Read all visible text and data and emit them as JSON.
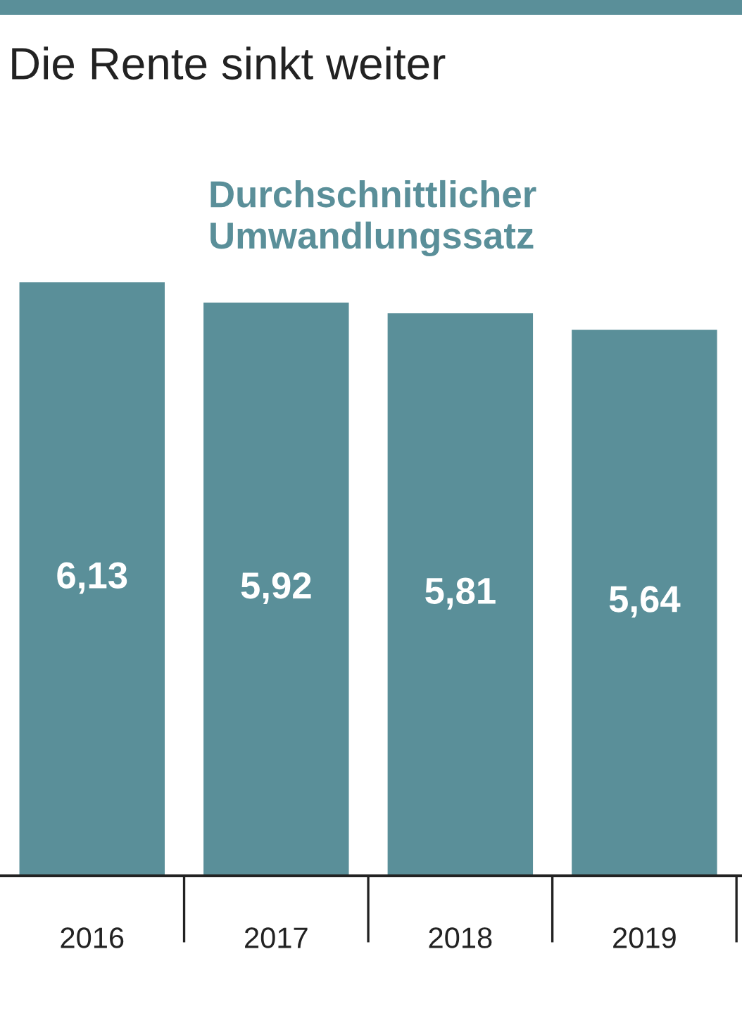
{
  "chart_data": {
    "type": "bar",
    "title": "Die Rente sinkt weiter",
    "subtitle": "Durchschnittlicher\nUmwandlungssatz",
    "categories": [
      "2016",
      "2017",
      "2018",
      "2019"
    ],
    "values": [
      6.13,
      5.92,
      5.81,
      5.64
    ],
    "value_labels": [
      "6,13",
      "5,92",
      "5,81",
      "5,64"
    ],
    "color": "#5a8f99"
  }
}
